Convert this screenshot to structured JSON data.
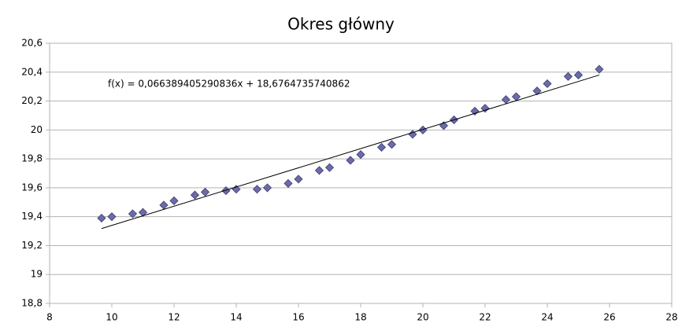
{
  "chart_data": {
    "type": "scatter",
    "title": "Okres główny",
    "annotation": "f(x) = 0,066389405290836x + 18,6764735740862",
    "xlim": [
      8,
      28
    ],
    "xticks": [
      8,
      10,
      12,
      14,
      16,
      18,
      20,
      22,
      24,
      26,
      28
    ],
    "ylim": [
      18.8,
      20.6
    ],
    "yticks": [
      {
        "value": 18.8,
        "label": "18,8"
      },
      19,
      {
        "value": 19.2,
        "label": "19,2"
      },
      {
        "value": 19.4,
        "label": "19,4"
      },
      {
        "value": 19.6,
        "label": "19,6"
      },
      {
        "value": 19.8,
        "label": "19,8"
      },
      20,
      {
        "value": 20.2,
        "label": "20,2"
      },
      {
        "value": 20.4,
        "label": "20,4"
      },
      {
        "value": 20.6,
        "label": "20,6"
      }
    ],
    "grid": true,
    "series": [
      {
        "type": "scatter",
        "color": "#6b6ba8",
        "x": [
          9.67,
          10,
          10.67,
          11,
          11.67,
          12,
          12.67,
          13,
          13.67,
          14,
          14.67,
          15,
          15.67,
          16,
          16.67,
          17,
          17.67,
          18,
          18.67,
          19,
          19.67,
          20,
          20.67,
          21,
          21.67,
          22,
          22.67,
          23,
          23.67,
          24,
          24.67,
          25,
          25.67
        ],
        "values": [
          19.39,
          19.4,
          19.42,
          19.43,
          19.48,
          19.51,
          19.55,
          19.57,
          19.58,
          19.59,
          19.59,
          19.6,
          19.63,
          19.66,
          19.72,
          19.74,
          19.79,
          19.83,
          19.88,
          19.9,
          19.97,
          20.0,
          20.03,
          20.07,
          20.13,
          20.15,
          20.21,
          20.23,
          20.27,
          20.32,
          20.37,
          20.38,
          20.42
        ]
      },
      {
        "type": "line",
        "color": "#000000",
        "x": [
          9.67,
          25.67
        ],
        "values": [
          19.318,
          20.38
        ]
      }
    ]
  }
}
